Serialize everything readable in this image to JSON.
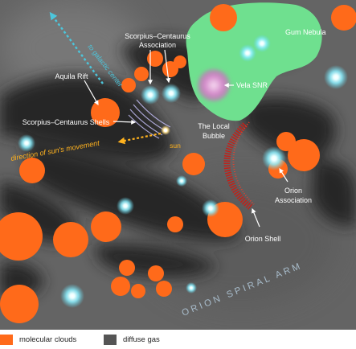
{
  "diagram": {
    "labels": {
      "galactic_center": "to galactic center",
      "scorpius_centaurus_association": [
        "Scorpius–Centaurus",
        "Association"
      ],
      "gum_nebula": "Gum Nebula",
      "aquila_rift": "Aquila Rift",
      "vela_snr": "Vela SNR",
      "scorpius_centaurus_shells": "Scorpius–Centaurus Shells",
      "local_bubble": [
        "The Local",
        "Bubble"
      ],
      "sun": "sun",
      "sun_movement": "direction of sun's movement",
      "orion_association": [
        "Orion",
        "Association"
      ],
      "orion_shell": "Orion Shell",
      "orion_spiral_arm": "ORION SPIRAL ARM"
    },
    "colors": {
      "background": "#646464",
      "diffuse_gas": "#262626",
      "molecular_clouds": "#ff6a1a",
      "gum_nebula": "#6fe08f",
      "vela_snr": "#d286c8",
      "stars": "#8ef0ff",
      "galactic_center_arrow": "#4cc6dc",
      "sun_arrow": "#ffb21e",
      "orion_shell": "#cc1a12",
      "label_text": "#ffffff",
      "arm_text": "#a8bccb"
    }
  },
  "legend": {
    "molecular_clouds": "molecular clouds",
    "diffuse_gas": "diffuse gas"
  }
}
